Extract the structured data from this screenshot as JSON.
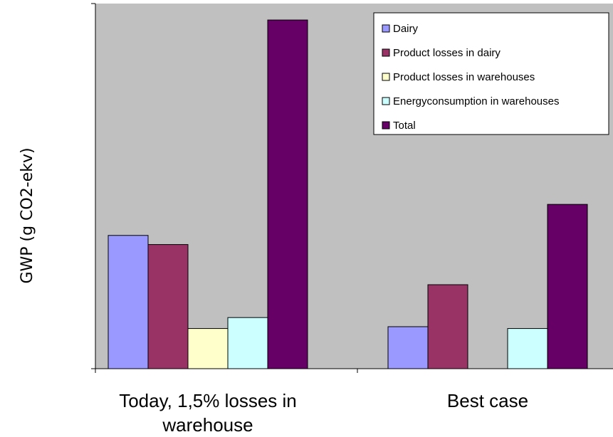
{
  "chart_data": {
    "type": "bar",
    "title": "",
    "ylabel": "GWP (g CO2-ekv)",
    "xlabel": "",
    "categories": [
      "Today,  1,5% losses in warehouse",
      "Best case"
    ],
    "category_lines": [
      [
        "Today,  1,5% losses in",
        "warehouse"
      ],
      [
        "Best case"
      ]
    ],
    "ylim": [
      0,
      100
    ],
    "grid": false,
    "legend_position": "top-right",
    "series": [
      {
        "name": "Dairy",
        "color": "#9999FF",
        "values": [
          36.5,
          11.5
        ]
      },
      {
        "name": "Product losses in dairy",
        "color": "#993366",
        "values": [
          34,
          23
        ]
      },
      {
        "name": "Product losses in warehouses",
        "color": "#FFFFCC",
        "values": [
          11,
          null
        ]
      },
      {
        "name": "Energyconsumption in warehouses",
        "color": "#CCFFFF",
        "values": [
          14,
          11
        ]
      },
      {
        "name": "Total",
        "color": "#660066",
        "values": [
          95.5,
          45
        ]
      }
    ],
    "plot_background": "#C0C0C0"
  }
}
